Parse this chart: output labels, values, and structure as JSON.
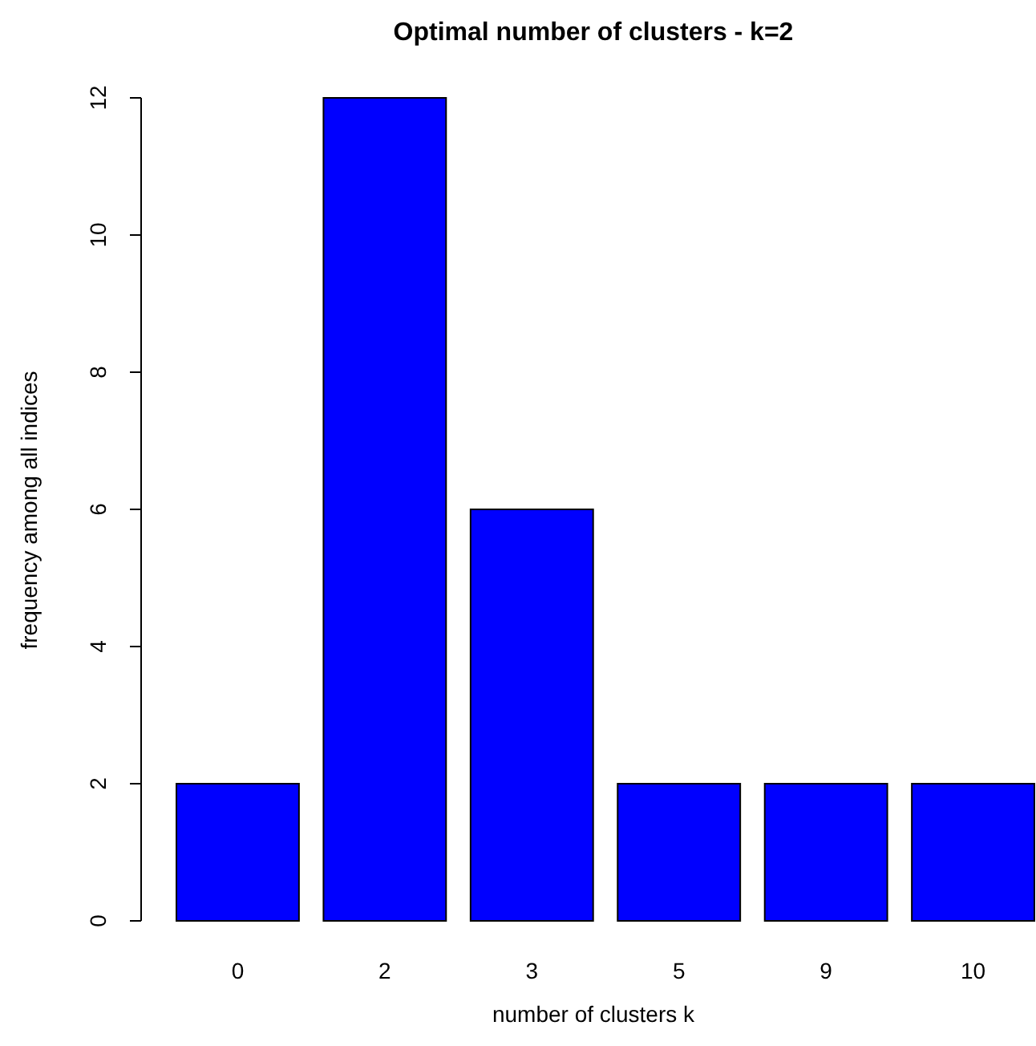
{
  "chart_data": {
    "type": "bar",
    "title": "Optimal number of clusters - k=2",
    "xlabel": "number of clusters k",
    "ylabel": "frequency among all indices",
    "categories": [
      "0",
      "2",
      "3",
      "5",
      "9",
      "10"
    ],
    "values": [
      2,
      12,
      6,
      2,
      2,
      2
    ],
    "color": "#0000ff",
    "ylim": [
      0,
      12
    ],
    "yticks": [
      0,
      2,
      4,
      6,
      8,
      10,
      12
    ],
    "grid": false
  }
}
